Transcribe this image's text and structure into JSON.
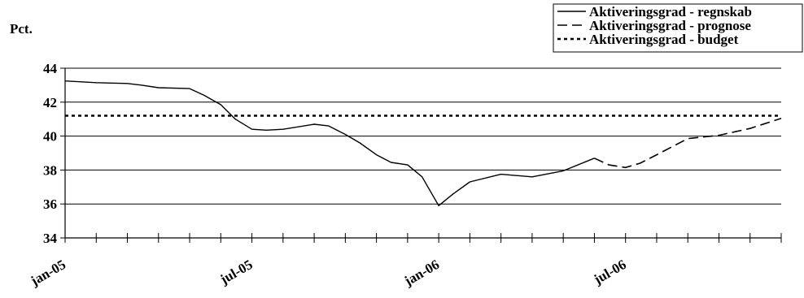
{
  "chart_data": {
    "type": "line",
    "ylabel": "Pct.",
    "ylim": [
      34,
      44
    ],
    "yticks": [
      "34",
      "36",
      "38",
      "40",
      "42",
      "44"
    ],
    "xlim": [
      "2005-01",
      "2006-12"
    ],
    "x_tick_labels": [
      {
        "label": "jan-05",
        "x": "2005-01"
      },
      {
        "label": "jul-05",
        "x": "2005-07"
      },
      {
        "label": "jan-06",
        "x": "2006-01"
      },
      {
        "label": "jul-06",
        "x": "2006-07"
      }
    ],
    "grid": "horizontal",
    "legend_position": "top-right",
    "series": [
      {
        "name": "Aktiveringsgrad - regnskab",
        "style": "solid",
        "points": [
          [
            "2005-01-01",
            43.25
          ],
          [
            "2005-02-01",
            43.15
          ],
          [
            "2005-03-01",
            43.1
          ],
          [
            "2005-03-15",
            43.0
          ],
          [
            "2005-04-01",
            42.85
          ],
          [
            "2005-05-01",
            42.8
          ],
          [
            "2005-05-15",
            42.4
          ],
          [
            "2005-06-01",
            41.85
          ],
          [
            "2005-06-15",
            41.0
          ],
          [
            "2005-07-01",
            40.4
          ],
          [
            "2005-07-15",
            40.35
          ],
          [
            "2005-08-01",
            40.4
          ],
          [
            "2005-09-01",
            40.7
          ],
          [
            "2005-09-15",
            40.6
          ],
          [
            "2005-10-01",
            40.1
          ],
          [
            "2005-10-15",
            39.6
          ],
          [
            "2005-11-01",
            38.9
          ],
          [
            "2005-11-15",
            38.45
          ],
          [
            "2005-12-01",
            38.3
          ],
          [
            "2005-12-15",
            37.6
          ],
          [
            "2006-01-01",
            35.9
          ],
          [
            "2006-01-15",
            36.6
          ],
          [
            "2006-02-01",
            37.3
          ],
          [
            "2006-03-01",
            37.75
          ],
          [
            "2006-04-01",
            37.6
          ],
          [
            "2006-05-01",
            37.95
          ],
          [
            "2006-06-01",
            38.7
          ]
        ]
      },
      {
        "name": "Aktiveringsgrad - prognose",
        "style": "dashed",
        "points": [
          [
            "2006-06-01",
            38.7
          ],
          [
            "2006-06-15",
            38.3
          ],
          [
            "2006-07-01",
            38.15
          ],
          [
            "2006-07-15",
            38.4
          ],
          [
            "2006-08-01",
            38.9
          ],
          [
            "2006-09-01",
            39.85
          ],
          [
            "2006-10-01",
            40.05
          ],
          [
            "2006-11-01",
            40.45
          ],
          [
            "2006-12-01",
            41.05
          ]
        ]
      },
      {
        "name": "Aktiveringsgrad - budget",
        "style": "dotted",
        "points": [
          [
            "2005-01-01",
            41.2
          ],
          [
            "2006-12-01",
            41.2
          ]
        ]
      }
    ]
  }
}
